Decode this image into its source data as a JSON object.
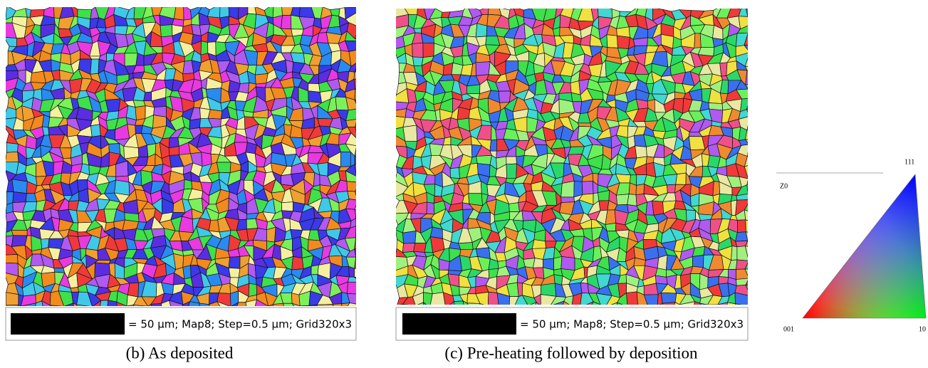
{
  "panels": [
    {
      "scale_text": "= 50 μm; Map8; Step=0.5 μm; Grid320x3",
      "caption": "(b) As deposited"
    },
    {
      "scale_text": "= 50 μm; Map8; Step=0.5 μm; Grid320x3",
      "caption": "(c) Pre-heating followed by deposition"
    }
  ],
  "legend": {
    "title": "Z0",
    "top": "111",
    "left": "001",
    "right": "10"
  }
}
